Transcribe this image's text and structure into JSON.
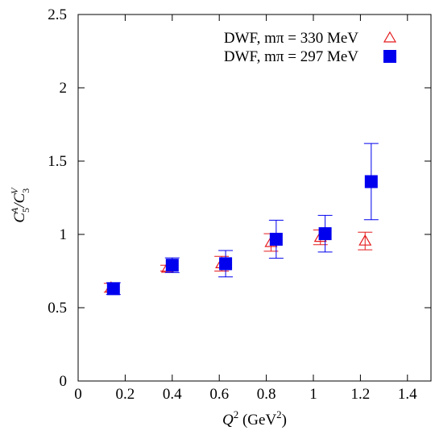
{
  "chart_data": {
    "type": "scatter",
    "xlabel": [
      "Q",
      "2",
      " (GeV",
      "2",
      ")"
    ],
    "ylabel": [
      "C",
      "5",
      "A",
      "/C",
      "3",
      "V"
    ],
    "xlim": [
      0,
      1.5
    ],
    "xticks": [
      0,
      0.2,
      0.4,
      0.6,
      0.8,
      1,
      1.2,
      1.4
    ],
    "ylim": [
      0,
      2.5
    ],
    "yticks": [
      0,
      0.5,
      1,
      1.5,
      2,
      2.5
    ],
    "legend": "upper right",
    "series": [
      {
        "name": "DWF, mπ = 330 MeV",
        "color": "#e41a1c",
        "marker": "open-triangle",
        "x": [
          0.14,
          0.38,
          0.61,
          0.82,
          1.03,
          1.22
        ],
        "values": [
          0.636,
          0.77,
          0.8,
          0.945,
          0.98,
          0.955
        ],
        "errors": [
          0.03,
          0.02,
          0.05,
          0.06,
          0.05,
          0.06
        ]
      },
      {
        "name": "DWF, mπ = 297 MeV",
        "color": "#0000ee",
        "marker": "filled-square",
        "x": [
          0.15,
          0.4,
          0.627,
          0.842,
          1.05,
          1.246
        ],
        "values": [
          0.63,
          0.79,
          0.8,
          0.967,
          1.005,
          1.36
        ],
        "errors": [
          0.04,
          0.05,
          0.09,
          0.13,
          0.125,
          0.26
        ]
      }
    ]
  }
}
